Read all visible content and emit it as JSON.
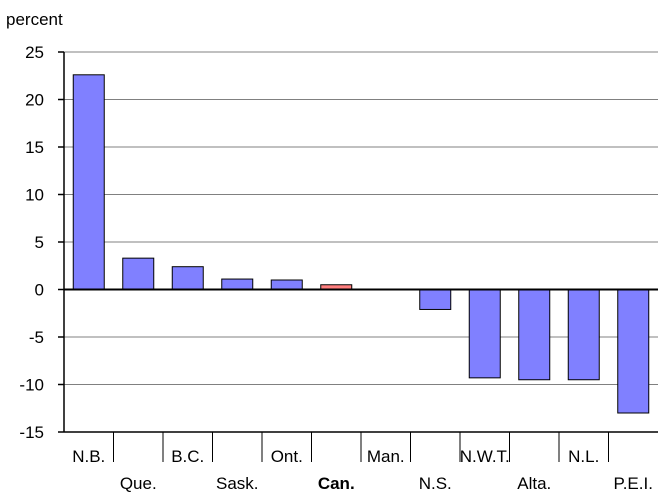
{
  "chart_data": {
    "type": "bar",
    "ylabel": "percent",
    "categories": [
      "N.B.",
      "Que.",
      "B.C.",
      "Sask.",
      "Ont.",
      "Can.",
      "Man.",
      "N.S.",
      "N.W.T.",
      "Alta.",
      "N.L.",
      "P.E.I."
    ],
    "values": [
      22.6,
      3.3,
      2.4,
      1.1,
      1.0,
      0.5,
      0.0,
      -2.1,
      -9.3,
      -9.5,
      -9.5,
      -13.0
    ],
    "highlight_category": "Can.",
    "ylim": [
      -15,
      25
    ],
    "yticks": [
      25,
      20,
      15,
      10,
      5,
      0,
      -5,
      -10,
      -15
    ],
    "grid": true,
    "colors": {
      "bar_fill": "#8080ff",
      "highlight_fill": "#ff7f7f",
      "bar_stroke": "#000000",
      "grid": "#808080",
      "axis": "#000000"
    }
  }
}
